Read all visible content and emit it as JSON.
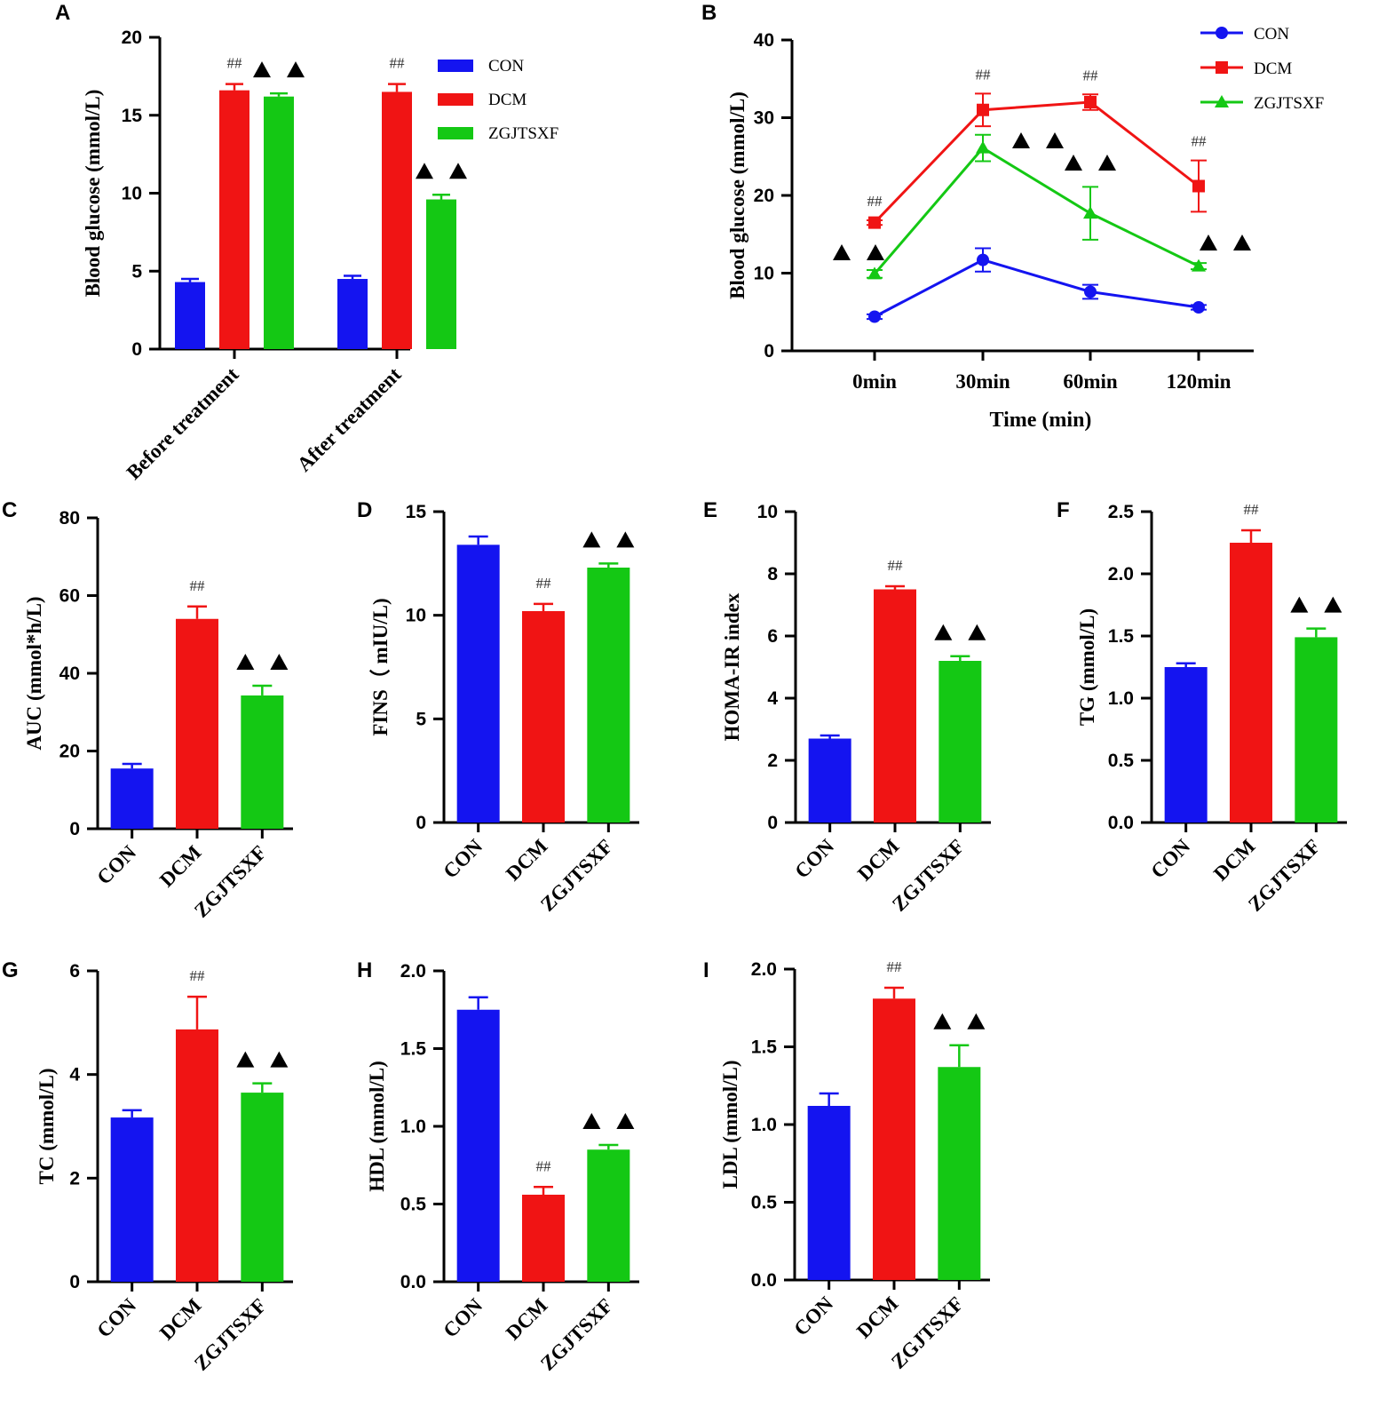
{
  "colors": {
    "CON": "#1414f0",
    "DCM": "#f01414",
    "ZGJTSXF": "#14c814",
    "axis": "#000000"
  },
  "annotations": {
    "hash": "##",
    "triangle": "▲▲"
  },
  "chart_data": [
    {
      "id": "A",
      "panel_label": "A",
      "type": "bar",
      "categories": [
        "Before treatment",
        "After treatment"
      ],
      "series": [
        {
          "name": "CON",
          "values": [
            4.3,
            4.5
          ],
          "errors": [
            0.2,
            0.2
          ]
        },
        {
          "name": "DCM",
          "values": [
            16.6,
            16.5
          ],
          "errors": [
            0.4,
            0.5
          ]
        },
        {
          "name": "ZGJTSXF",
          "values": [
            16.2,
            9.6
          ],
          "errors": [
            0.2,
            0.3
          ]
        }
      ],
      "marks": [
        {
          "series": "DCM",
          "group": 0,
          "label": "##"
        },
        {
          "series": "ZGJTSXF",
          "group": 0,
          "label": "▲▲"
        },
        {
          "series": "DCM",
          "group": 1,
          "label": "##"
        },
        {
          "series": "ZGJTSXF",
          "group": 1,
          "label": "▲▲"
        }
      ],
      "ylabel": "Blood glucose (mmol/L)",
      "xlabel": "",
      "ylim": [
        0,
        20
      ],
      "yticks": [
        "0",
        "5",
        "10",
        "15",
        "20"
      ],
      "legend": {
        "position": "top-right",
        "entries": [
          "CON",
          "DCM",
          "ZGJTSXF"
        ]
      }
    },
    {
      "id": "B",
      "panel_label": "B",
      "type": "line",
      "x": [
        "0min",
        "30min",
        "60min",
        "120min"
      ],
      "series": [
        {
          "name": "CON",
          "marker": "circle",
          "values": [
            4.4,
            11.7,
            7.6,
            5.6
          ],
          "errors": [
            0.3,
            1.5,
            0.9,
            0.3
          ]
        },
        {
          "name": "DCM",
          "marker": "square",
          "values": [
            16.5,
            31.0,
            32.0,
            21.2
          ],
          "errors": [
            0.3,
            2.1,
            1.0,
            3.3
          ]
        },
        {
          "name": "ZGJTSXF",
          "marker": "triangle",
          "values": [
            9.9,
            26.1,
            17.7,
            10.9
          ],
          "errors": [
            0.5,
            1.7,
            3.4,
            0.4
          ]
        }
      ],
      "marks": [
        {
          "series": "DCM",
          "index": 0,
          "label": "##"
        },
        {
          "series": "DCM",
          "index": 1,
          "label": "##"
        },
        {
          "series": "DCM",
          "index": 2,
          "label": "##"
        },
        {
          "series": "DCM",
          "index": 3,
          "label": "##"
        },
        {
          "series": "ZGJTSXF",
          "index": 0,
          "label": "▲▲"
        },
        {
          "series": "ZGJTSXF",
          "index": 1,
          "label": "▲▲"
        },
        {
          "series": "ZGJTSXF",
          "index": 2,
          "label": "▲▲"
        },
        {
          "series": "ZGJTSXF",
          "index": 3,
          "label": "▲▲"
        }
      ],
      "ylabel": "Blood glucose (mmol/L)",
      "xlabel": "Time (min)",
      "ylim": [
        0,
        40
      ],
      "yticks": [
        "0",
        "10",
        "20",
        "30",
        "40"
      ],
      "legend": {
        "position": "top-right",
        "entries": [
          "CON",
          "DCM",
          "ZGJTSXF"
        ]
      }
    },
    {
      "id": "C",
      "panel_label": "C",
      "type": "bar",
      "categories": [
        "CON",
        "DCM",
        "ZGJTSXF"
      ],
      "values": [
        15.5,
        54.0,
        34.3
      ],
      "errors": [
        1.2,
        3.2,
        2.5
      ],
      "marks": [
        "",
        "##",
        "▲▲"
      ],
      "ylabel": "AUC (mmol*h/L)",
      "ylim": [
        0,
        80
      ],
      "yticks": [
        "0",
        "20",
        "40",
        "60",
        "80"
      ]
    },
    {
      "id": "D",
      "panel_label": "D",
      "type": "bar",
      "categories": [
        "CON",
        "DCM",
        "ZGJTSXF"
      ],
      "values": [
        13.4,
        10.2,
        12.3
      ],
      "errors": [
        0.4,
        0.35,
        0.2
      ],
      "marks": [
        "",
        "##",
        "▲▲"
      ],
      "ylabel": "FINS（ mIU/L)",
      "ylim": [
        0,
        15
      ],
      "yticks": [
        "0",
        "5",
        "10",
        "15"
      ]
    },
    {
      "id": "E",
      "panel_label": "E",
      "type": "bar",
      "categories": [
        "CON",
        "DCM",
        "ZGJTSXF"
      ],
      "values": [
        2.7,
        7.5,
        5.2
      ],
      "errors": [
        0.1,
        0.1,
        0.15
      ],
      "marks": [
        "",
        "##",
        "▲▲"
      ],
      "ylabel": "HOMA-IR index",
      "ylim": [
        0,
        10
      ],
      "yticks": [
        "0",
        "2",
        "4",
        "6",
        "8",
        "10"
      ]
    },
    {
      "id": "F",
      "panel_label": "F",
      "type": "bar",
      "categories": [
        "CON",
        "DCM",
        "ZGJTSXF"
      ],
      "values": [
        1.25,
        2.25,
        1.49
      ],
      "errors": [
        0.03,
        0.1,
        0.07
      ],
      "marks": [
        "",
        "##",
        "▲▲"
      ],
      "ylabel": "TG (mmol/L)",
      "ylim": [
        0,
        2.5
      ],
      "yticks": [
        "0.0",
        "0.5",
        "1.0",
        "1.5",
        "2.0",
        "2.5"
      ]
    },
    {
      "id": "G",
      "panel_label": "G",
      "type": "bar",
      "categories": [
        "CON",
        "DCM",
        "ZGJTSXF"
      ],
      "values": [
        3.17,
        4.87,
        3.65
      ],
      "errors": [
        0.14,
        0.63,
        0.18
      ],
      "marks": [
        "",
        "##",
        "▲▲"
      ],
      "ylabel": "TC (mmol/L)",
      "ylim": [
        0,
        6
      ],
      "yticks": [
        "0",
        "2",
        "4",
        "6"
      ]
    },
    {
      "id": "H",
      "panel_label": "H",
      "type": "bar",
      "categories": [
        "CON",
        "DCM",
        "ZGJTSXF"
      ],
      "values": [
        1.75,
        0.56,
        0.85
      ],
      "errors": [
        0.08,
        0.05,
        0.03
      ],
      "marks": [
        "",
        "##",
        "▲▲"
      ],
      "ylabel": "HDL (mmol/L)",
      "ylim": [
        0,
        2.0
      ],
      "yticks": [
        "0.0",
        "0.5",
        "1.0",
        "1.5",
        "2.0"
      ]
    },
    {
      "id": "I",
      "panel_label": "I",
      "type": "bar",
      "categories": [
        "CON",
        "DCM",
        "ZGJTSXF"
      ],
      "values": [
        1.12,
        1.81,
        1.37
      ],
      "errors": [
        0.08,
        0.07,
        0.14
      ],
      "marks": [
        "",
        "##",
        "▲▲"
      ],
      "ylabel": "LDL (mmol/L)",
      "ylim": [
        0,
        2.0
      ],
      "yticks": [
        "0.0",
        "0.5",
        "1.0",
        "1.5",
        "2.0"
      ]
    }
  ]
}
